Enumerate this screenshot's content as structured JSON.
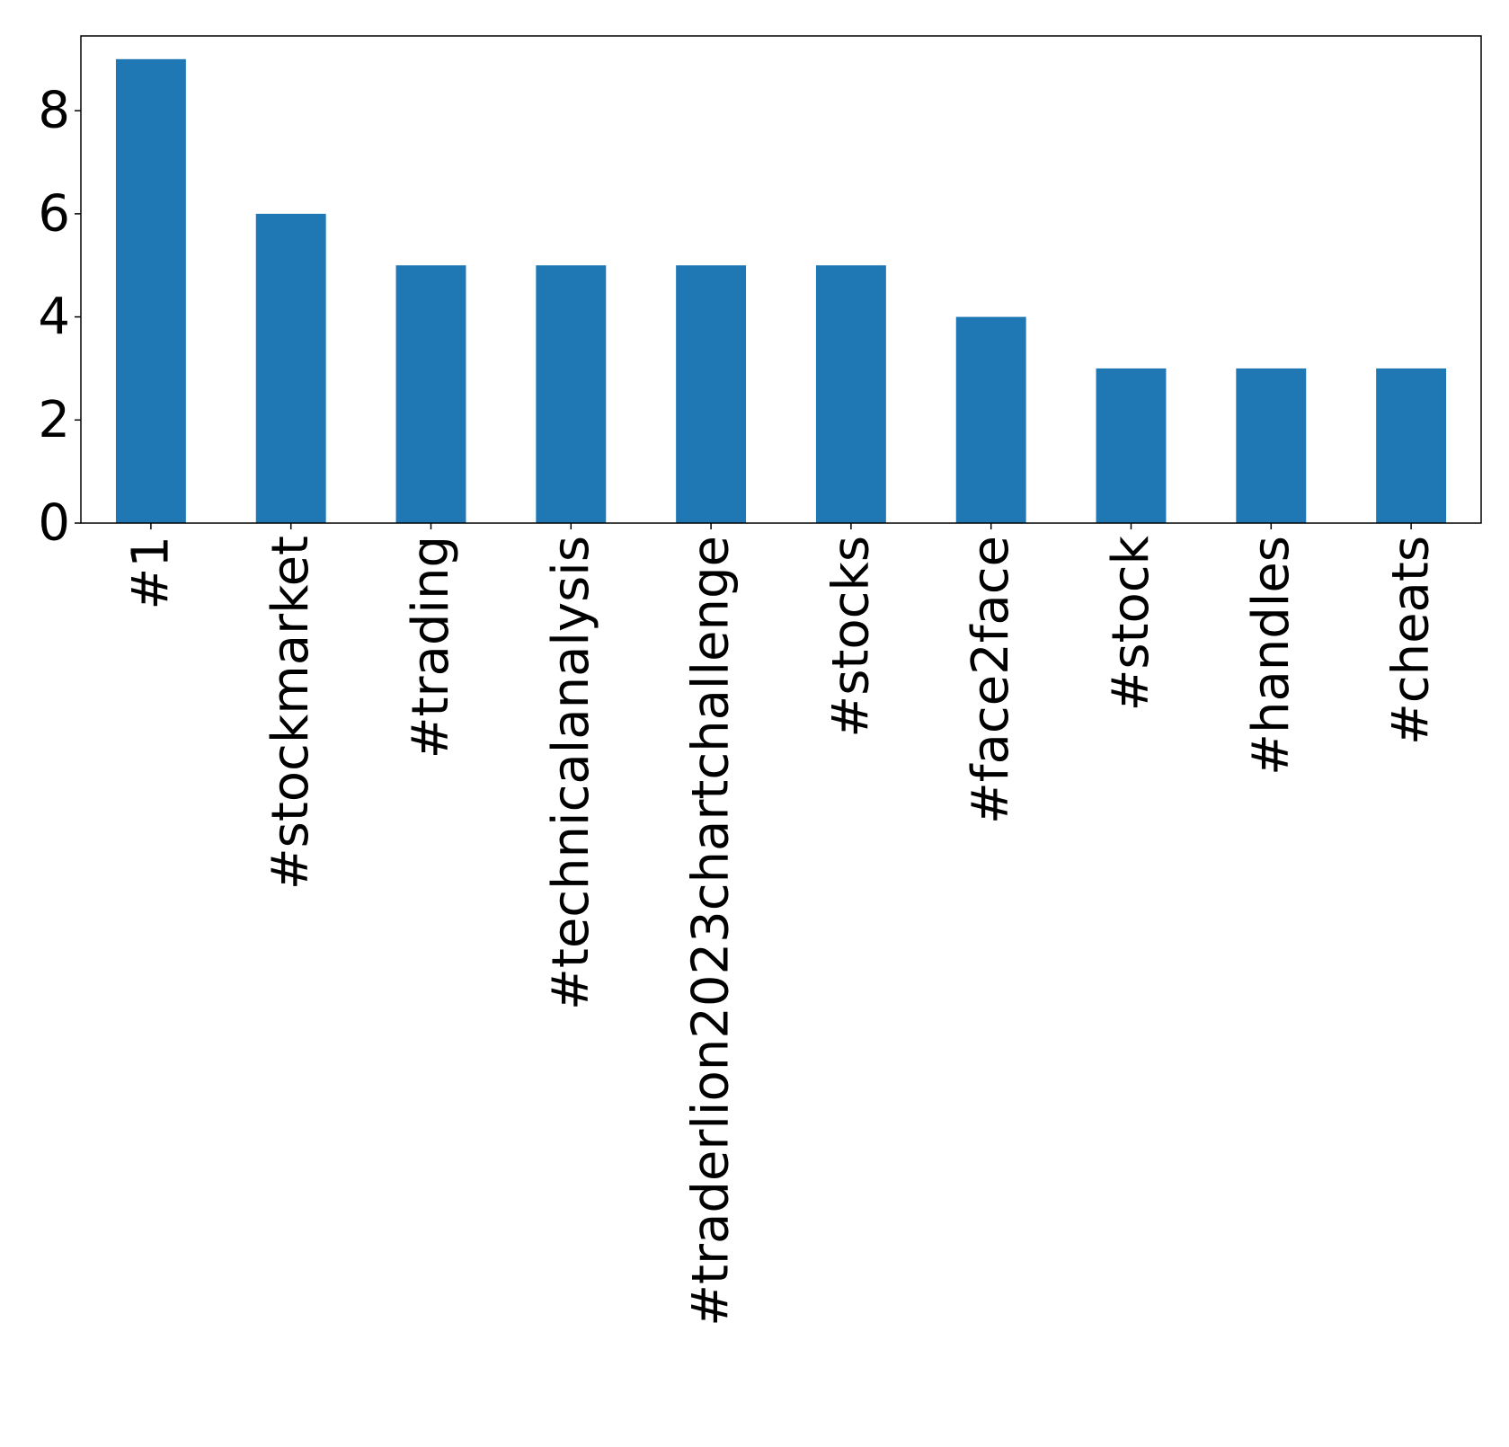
{
  "chart_data": {
    "type": "bar",
    "categories": [
      "#1",
      "#stockmarket",
      "#trading",
      "#technicalanalysis",
      "#traderlion2023chartchallenge",
      "#stocks",
      "#face2face",
      "#stock",
      "#handles",
      "#cheats"
    ],
    "values": [
      9,
      6,
      5,
      5,
      5,
      5,
      4,
      3,
      3,
      3
    ],
    "ylim": [
      0,
      9.45
    ],
    "yticks": [
      0,
      2,
      4,
      6,
      8
    ],
    "ytick_labels": [
      "0",
      "2",
      "4",
      "6",
      "8"
    ],
    "bar_color": "#1f77b4",
    "grid": false,
    "legend": "none",
    "title": "",
    "xlabel": "",
    "ylabel": ""
  }
}
